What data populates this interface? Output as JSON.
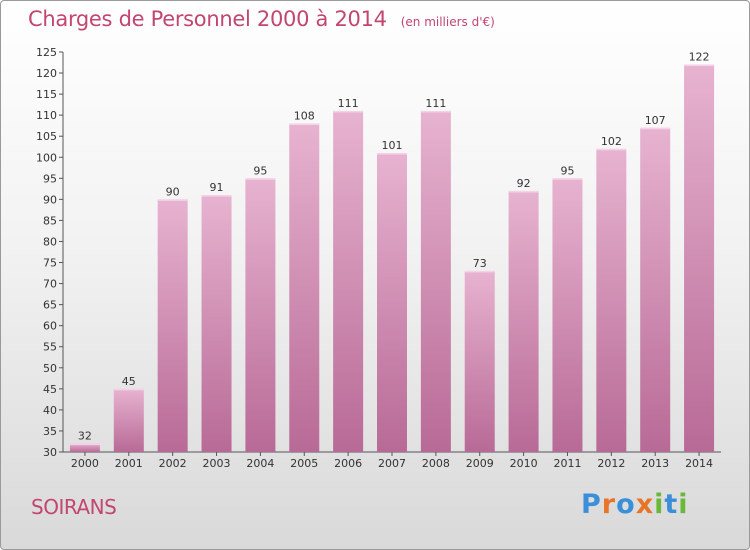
{
  "title": "Charges de Personnel 2000 à 2014",
  "subtitle": "(en milliers d'€)",
  "place": "SOIRANS",
  "logo": {
    "text": "Proxiti",
    "letter_colors": [
      "#3a8fd8",
      "#e8742a",
      "#3a8fd8",
      "#e8742a",
      "#6ab83a",
      "#3a8fd8",
      "#6ab83a"
    ]
  },
  "colors": {
    "bar": "#d68bb4",
    "bar_light": "#e7b3d0",
    "bar_dark": "#b86a96",
    "title": "#c2466f"
  },
  "chart_data": {
    "type": "bar",
    "categories": [
      "2000",
      "2001",
      "2002",
      "2003",
      "2004",
      "2005",
      "2006",
      "2007",
      "2008",
      "2009",
      "2010",
      "2011",
      "2012",
      "2013",
      "2014"
    ],
    "values": [
      32,
      45,
      90,
      91,
      95,
      108,
      111,
      101,
      111,
      73,
      92,
      95,
      102,
      107,
      122
    ],
    "ylim": [
      30,
      125
    ],
    "yticks": [
      30,
      35,
      40,
      45,
      50,
      55,
      60,
      65,
      70,
      75,
      80,
      85,
      90,
      95,
      100,
      105,
      110,
      115,
      120,
      125
    ],
    "grid": false,
    "legend": "none"
  }
}
